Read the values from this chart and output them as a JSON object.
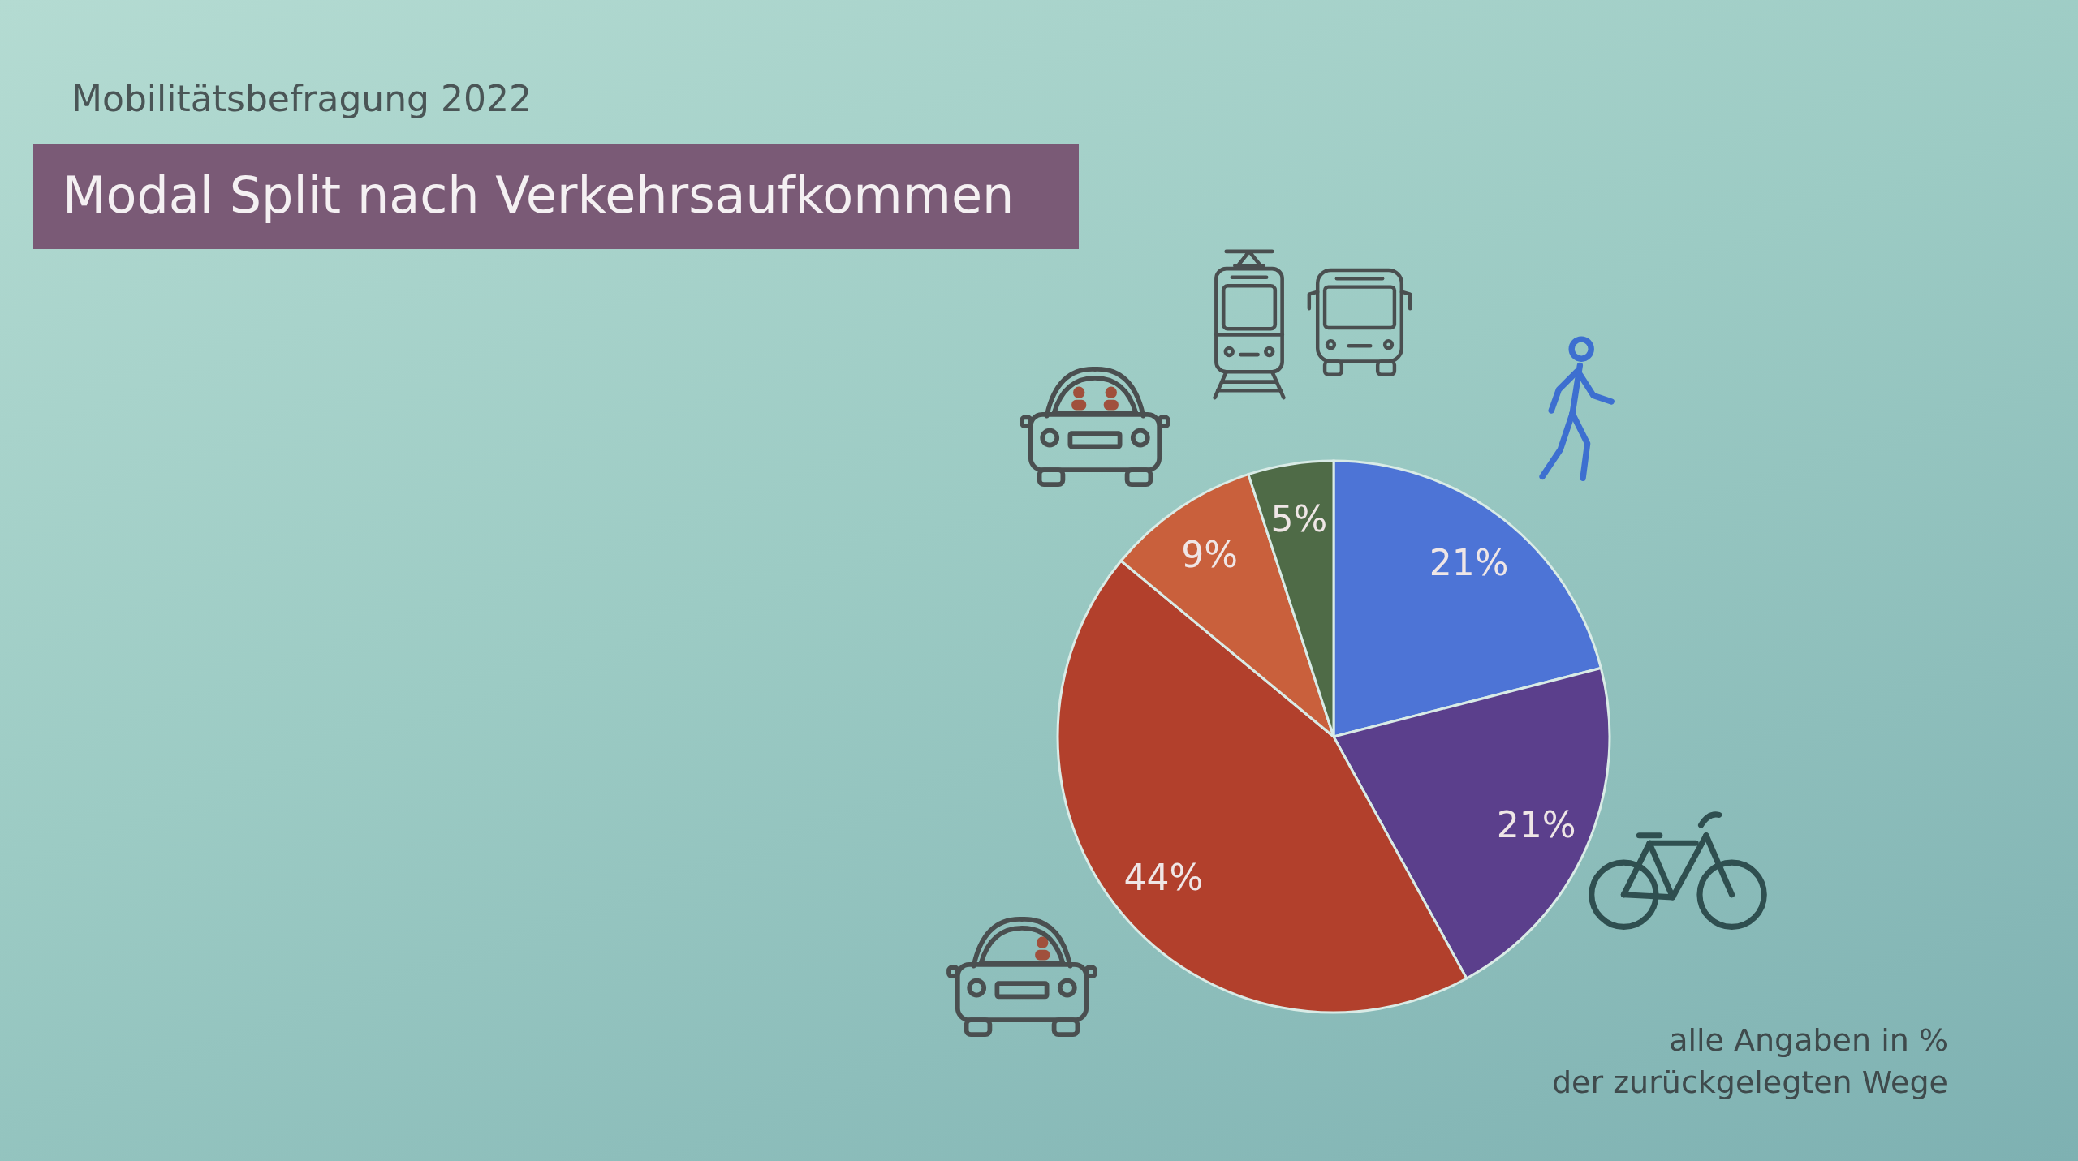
{
  "chart_data": {
    "type": "pie",
    "subtitle": "Mobilitätsbefragung 2022",
    "title": "Modal Split nach Verkehrsaufkommen",
    "categories": [
      null,
      null,
      null,
      null,
      null
    ],
    "values": [
      21,
      21,
      44,
      9,
      5
    ],
    "colors": [
      "#4d74d6",
      "#5b3f8c",
      "#b2402c",
      "#c9603c",
      "#4f6b47"
    ],
    "value_labels": [
      "21%",
      "21%",
      "44%",
      "9%",
      "5%"
    ],
    "annotations": [
      "alle Angaben in %",
      "der zurückgelegten Wege"
    ]
  }
}
